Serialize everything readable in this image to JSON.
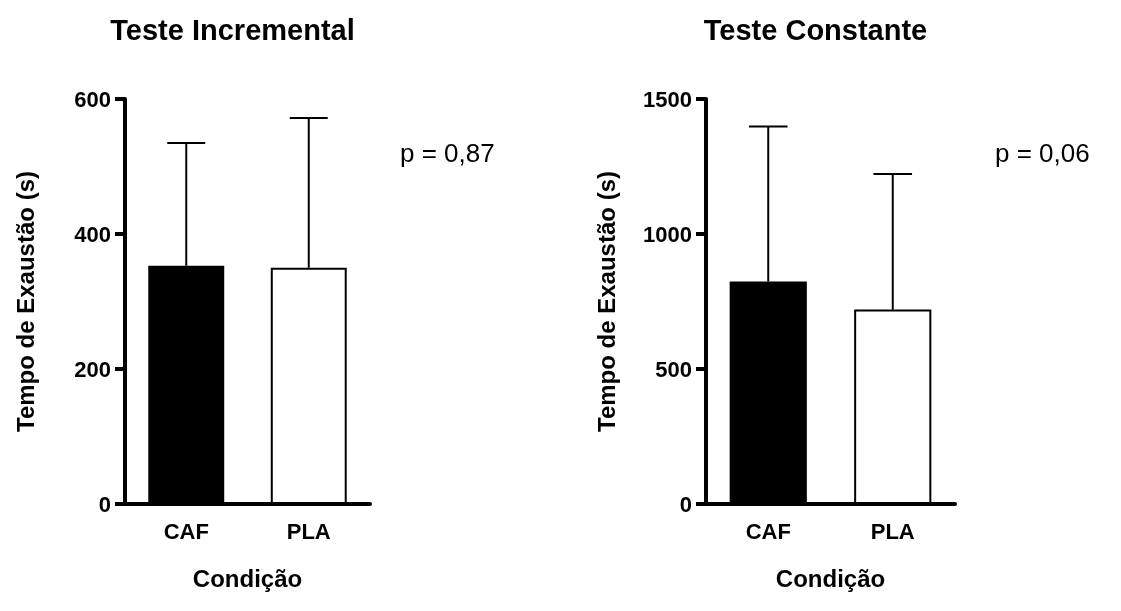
{
  "chart_data": [
    {
      "type": "bar",
      "title": "Teste Incremental",
      "xlabel": "Condição",
      "ylabel": "Tempo de Exaustão (s)",
      "categories": [
        "CAF",
        "PLA"
      ],
      "values": [
        353,
        350
      ],
      "colors": [
        "#000000",
        "#ffffff"
      ],
      "errors": [
        [
          353,
          535
        ],
        [
          350,
          572
        ]
      ],
      "ylim": [
        0,
        600
      ],
      "yticks": [
        0,
        200,
        400,
        600
      ],
      "grid": false,
      "annotations": [
        "p = 0,87"
      ]
    },
    {
      "type": "bar",
      "title": "Teste Constante",
      "xlabel": "Condição",
      "ylabel": "Tempo de Exaustão (s)",
      "categories": [
        "CAF",
        "PLA"
      ],
      "values": [
        824,
        720
      ],
      "colors": [
        "#000000",
        "#ffffff"
      ],
      "errors": [
        [
          824,
          1398
        ],
        [
          720,
          1222
        ]
      ],
      "ylim": [
        0,
        1500
      ],
      "yticks": [
        0,
        500,
        1000,
        1500
      ],
      "grid": false,
      "annotations": [
        "p = 0,06"
      ]
    }
  ]
}
